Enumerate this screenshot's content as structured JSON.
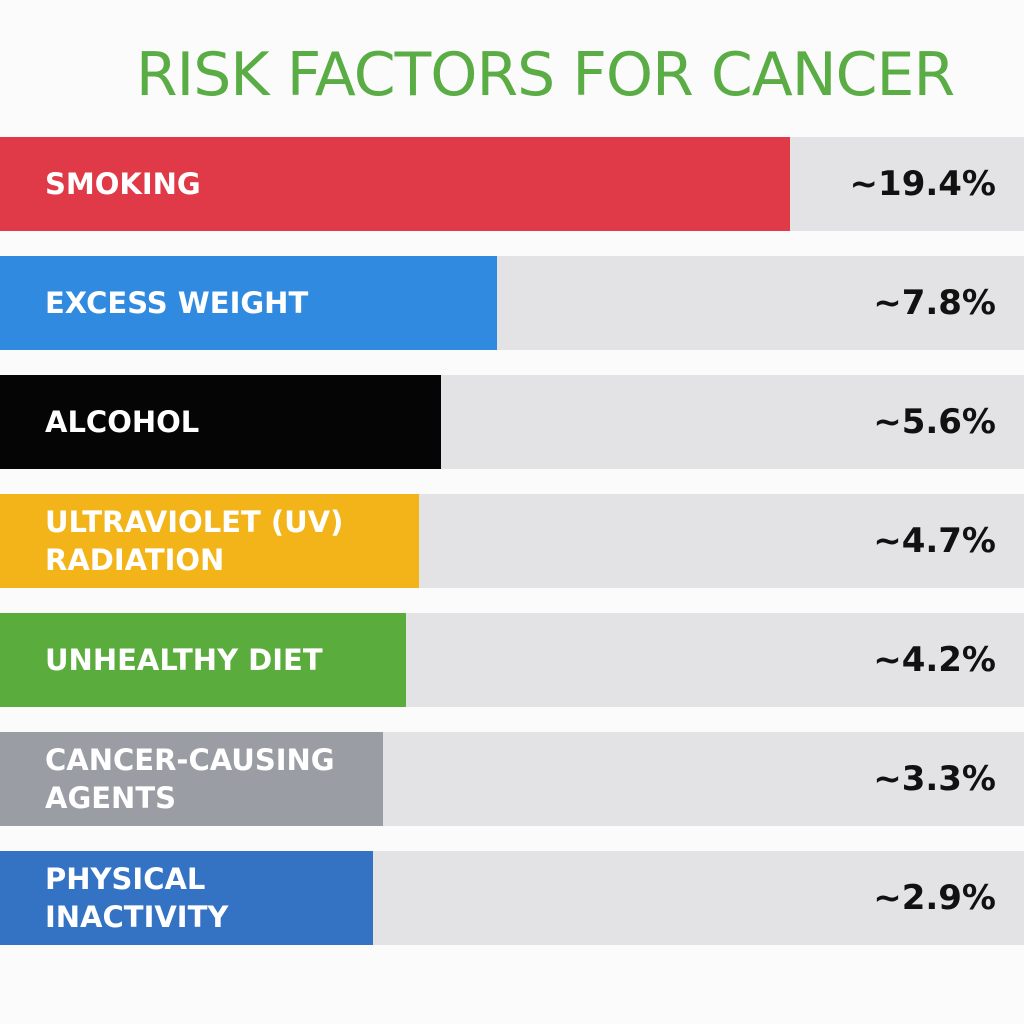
{
  "chart_data": {
    "type": "bar",
    "orientation": "horizontal",
    "title": "RISK FACTORS FOR CANCER",
    "categories": [
      "SMOKING",
      "EXCESS WEIGHT",
      "ALCOHOL",
      "ULTRAVIOLET (UV) RADIATION",
      "UNHEALTHY DIET",
      "CANCER-CAUSING AGENTS",
      "PHYSICAL INACTIVITY"
    ],
    "values": [
      19.4,
      7.8,
      5.6,
      4.7,
      4.2,
      3.3,
      2.9
    ],
    "value_labels": [
      "~19.4%",
      "~7.8%",
      "~5.6%",
      "~4.7%",
      "~4.2%",
      "~3.3%",
      "~2.9%"
    ],
    "colors": [
      "#e03a48",
      "#2f8ae0",
      "#050505",
      "#f2b418",
      "#5aac3c",
      "#9a9da3",
      "#3472c4"
    ],
    "title_color": "#5aac44"
  }
}
